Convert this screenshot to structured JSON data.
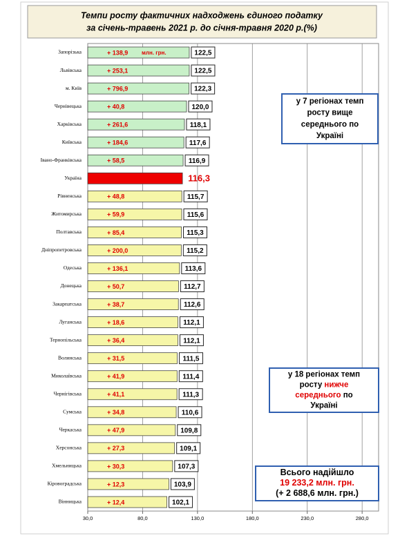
{
  "chart_data": {
    "type": "bar",
    "orientation": "horizontal",
    "title": [
      "Темпи росту фактичних надходжень єдиного податку",
      "за січень-травень 2021 р. до січня-травня 2020 р.(%)"
    ],
    "categories": [
      "Запорізька",
      "Львівська",
      "м. Київ",
      "Чернівецька",
      "Харківська",
      "Київська",
      "Івано-Франківська",
      "Україна",
      "Рівненська",
      "Житомирська",
      "Полтавська",
      "Дніпропетровська",
      "Одеська",
      "Донецька",
      "Закарпатська",
      "Луганська",
      "Тернопільська",
      "Волинська",
      "Миколаївська",
      "Чернігівська",
      "Сумська",
      "Черкаська",
      "Херсонська",
      "Хмельницька",
      "Кіровоградська",
      "Вінницька"
    ],
    "values": [
      122.5,
      122.5,
      122.3,
      120.0,
      118.1,
      117.6,
      116.9,
      116.3,
      115.7,
      115.6,
      115.3,
      115.2,
      113.6,
      112.7,
      112.6,
      112.1,
      112.1,
      111.5,
      111.4,
      111.3,
      110.6,
      109.8,
      109.1,
      107.3,
      103.9,
      102.1
    ],
    "value_labels": [
      "122,5",
      "122,5",
      "122,3",
      "120,0",
      "118,1",
      "117,6",
      "116,9",
      "116,3",
      "115,7",
      "115,6",
      "115,3",
      "115,2",
      "113,6",
      "112,7",
      "112,6",
      "112,1",
      "112,1",
      "111,5",
      "111,4",
      "111,3",
      "110,6",
      "109,8",
      "109,1",
      "107,3",
      "103,9",
      "102,1"
    ],
    "increment_labels": [
      "+ 138,9",
      "+ 253,1",
      "+ 796,9",
      "+ 40,8",
      "+ 261,6",
      "+ 184,6",
      "+ 58,5",
      null,
      "+ 48,8",
      "+ 59,9",
      "+ 85,4",
      "+ 200,0",
      "+ 136,1",
      "+ 50,7",
      "+ 38,7",
      "+ 18,6",
      "+ 36,4",
      "+ 31,5",
      "+ 41,9",
      "+ 41,1",
      "+ 34,8",
      "+ 47,9",
      "+ 27,3",
      "+ 30,3",
      "+ 12,3",
      "+ 12,4"
    ],
    "increment_unit": "млн. грн.",
    "bar_colors": [
      "#c8f0c8",
      "#c8f0c8",
      "#c8f0c8",
      "#c8f0c8",
      "#c8f0c8",
      "#c8f0c8",
      "#c8f0c8",
      "#ee0000",
      "#f6f6a8",
      "#f6f6a8",
      "#f6f6a8",
      "#f6f6a8",
      "#f6f6a8",
      "#f6f6a8",
      "#f6f6a8",
      "#f6f6a8",
      "#f6f6a8",
      "#f6f6a8",
      "#f6f6a8",
      "#f6f6a8",
      "#f6f6a8",
      "#f6f6a8",
      "#f6f6a8",
      "#f6f6a8",
      "#f6f6a8",
      "#f6f6a8"
    ],
    "highlight_index": 7,
    "xlim": [
      30,
      295
    ],
    "xticks": [
      {
        "value": 30,
        "label": "30,0"
      },
      {
        "value": 80,
        "label": "80,0"
      },
      {
        "value": 130,
        "label": "130,0"
      },
      {
        "value": 180,
        "label": "180,0"
      },
      {
        "value": 230,
        "label": "230,0"
      },
      {
        "value": 280,
        "label": "280,0"
      }
    ],
    "grid": true,
    "annotations": [
      {
        "lines": [
          [
            {
              "text": "у 7 регіонах темп"
            }
          ],
          [
            {
              "text": "росту вище"
            }
          ],
          [
            {
              "text": "середнього по"
            }
          ],
          [
            {
              "text": "Україні"
            }
          ]
        ]
      },
      {
        "lines": [
          [
            {
              "text": "у 18 регіонах темп"
            }
          ],
          [
            {
              "text": "росту "
            },
            {
              "text": "нижче",
              "color": "#e00000"
            }
          ],
          [
            {
              "text": "середнього",
              "color": "#e00000"
            },
            {
              "text": " по"
            }
          ],
          [
            {
              "text": "Україні"
            }
          ]
        ]
      },
      {
        "lines": [
          [
            {
              "text": "Всього надійшло"
            }
          ],
          [
            {
              "text": "19 233,2 млн. грн.",
              "color": "#e00000"
            }
          ],
          [
            {
              "text": "(+ 2 688,6 млн. грн.)"
            }
          ]
        ]
      }
    ]
  }
}
